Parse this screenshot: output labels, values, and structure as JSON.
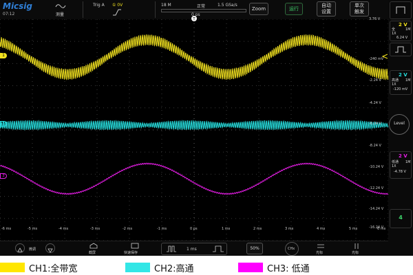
{
  "app": {
    "logo": "Micsig",
    "clock": "07:12"
  },
  "topbar": {
    "measure_label": "测量",
    "trig_label": "Trig A",
    "trig_level": "① 0V",
    "memory": "18 M",
    "status": "正常",
    "sample_rate": "1.5 GSa/s",
    "trigger_pos": "0 ps",
    "zoom": "Zoom",
    "run": "运行",
    "auto_setup": "自动\n设置",
    "single": "单次\n触发"
  },
  "channels": [
    {
      "id": "1",
      "volts": "2 V",
      "coupling": "全",
      "probe": "1X",
      "imp": "1M",
      "offset": "6.24 V",
      "color": "#f2e21f"
    },
    {
      "id": "2",
      "volts": "2 V",
      "coupling": "高通",
      "probe": "1X",
      "imp": "1M",
      "offset": "-120 mV",
      "color": "#27e0e0"
    },
    {
      "id": "3",
      "volts": "2 V",
      "coupling": "低通",
      "probe": "1X",
      "imp": "1M",
      "offset": "-4.78 V",
      "color": "#e81ee8"
    }
  ],
  "sidebar": {
    "level": "Level",
    "ch4": "4"
  },
  "y_labels": [
    "3.76 V",
    "-240 mV",
    "-2.24 V",
    "-4.24 V",
    "-6.24 V",
    "-8.24 V",
    "-10.24 V",
    "-12.24 V",
    "-14.24 V",
    "-16.24 V"
  ],
  "x_labels": [
    "-6 ms",
    "-5 ms",
    "-4 ms",
    "-3 ms",
    "-2 ms",
    "-1 ms",
    "0 ps",
    "1 ms",
    "2 ms",
    "3 ms",
    "4 ms",
    "5 ms",
    "6 ms"
  ],
  "bottombar": {
    "fine": "微调",
    "screenshot": "截屏",
    "quick_save": "快速保存",
    "timebase": "1 ms",
    "percent": "50%",
    "chx": "CHx",
    "cursor1": "光标",
    "cursor2": "光标"
  },
  "legend": [
    {
      "label": "CH1:全带宽",
      "color": "#ffe600"
    },
    {
      "label": "CH2:高通",
      "color": "#33e6e6"
    },
    {
      "label": "CH3: 低通",
      "color": "#ff00ff"
    }
  ]
}
